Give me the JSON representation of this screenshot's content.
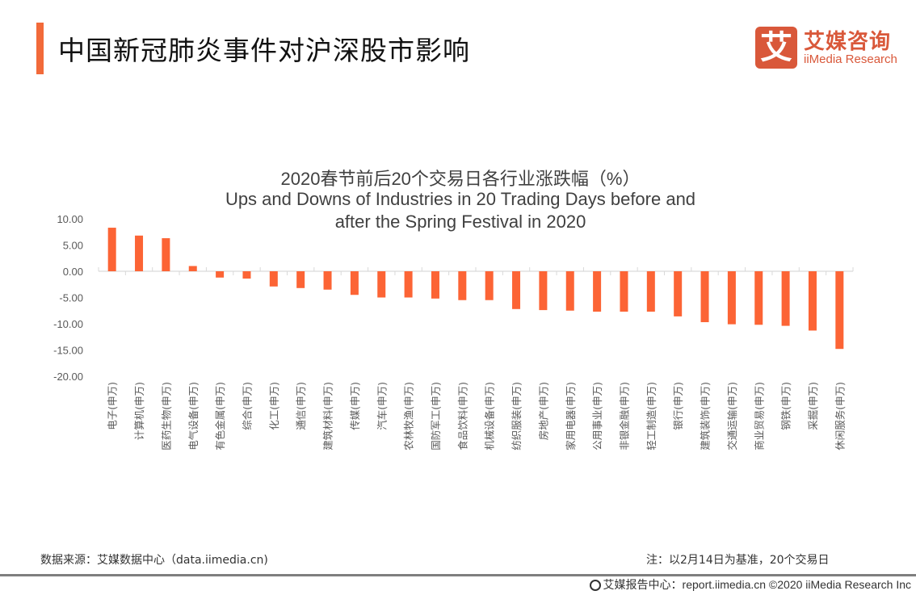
{
  "header": {
    "title": "中国新冠肺炎事件对沪深股市影响",
    "accent_color": "#f26a3a"
  },
  "logo": {
    "mark": "艾",
    "cn": "艾媒咨询",
    "en": "iiMedia Research",
    "color": "#d9583a"
  },
  "chart_data": {
    "type": "bar",
    "title_lines": [
      "2020春节前后20个交易日各行业涨跌幅（%）",
      "Ups and Downs of Industries  in 20 Trading Days before and",
      "after the Spring Festival in 2020"
    ],
    "xlabel": "",
    "ylabel": "",
    "ylim": [
      -20,
      10
    ],
    "yticks": [
      "10.00",
      "5.00",
      "0.00",
      "-5.00",
      "-10.00",
      "-15.00",
      "-20.00"
    ],
    "ytick_values": [
      10,
      5,
      0,
      -5,
      -10,
      -15,
      -20
    ],
    "grid": false,
    "bar_color": "#fc6435",
    "categories": [
      "电子(申万)",
      "计算机(申万)",
      "医药生物(申万)",
      "电气设备(申万)",
      "有色金属(申万)",
      "综合(申万)",
      "化工(申万)",
      "通信(申万)",
      "建筑材料(申万)",
      "传媒(申万)",
      "汽车(申万)",
      "农林牧渔(申万)",
      "国防军工(申万)",
      "食品饮料(申万)",
      "机械设备(申万)",
      "纺织服装(申万)",
      "房地产(申万)",
      "家用电器(申万)",
      "公用事业(申万)",
      "非银金融(申万)",
      "轻工制造(申万)",
      "银行(申万)",
      "建筑装饰(申万)",
      "交通运输(申万)",
      "商业贸易(申万)",
      "钢铁(申万)",
      "采掘(申万)",
      "休闲服务(申万)"
    ],
    "values": [
      8.3,
      6.8,
      6.3,
      1.0,
      -1.2,
      -1.4,
      -2.9,
      -3.2,
      -3.5,
      -4.5,
      -5.0,
      -5.0,
      -5.2,
      -5.5,
      -5.5,
      -7.2,
      -7.4,
      -7.5,
      -7.7,
      -7.7,
      -7.7,
      -8.6,
      -9.7,
      -10.1,
      -10.2,
      -10.4,
      -11.3,
      -14.8
    ]
  },
  "footer": {
    "source": "数据来源：艾媒数据中心（data.iimedia.cn)",
    "note": "注：以2月14日为基准，20个交易日",
    "copyright": "艾媒报告中心：report.iimedia.cn  ©2020  iiMedia Research  Inc"
  }
}
